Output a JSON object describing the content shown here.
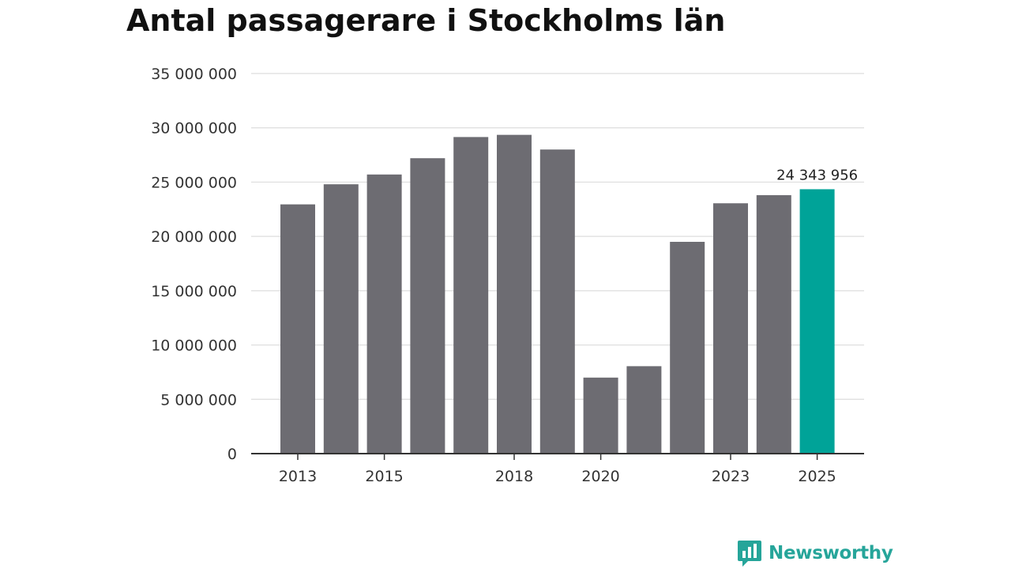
{
  "chart_data": {
    "type": "bar",
    "title": "Antal passagerare i Stockholms län",
    "xlabel": "",
    "ylabel": "",
    "ylim": [
      0,
      35000000
    ],
    "yticks": [
      0,
      5000000,
      10000000,
      15000000,
      20000000,
      25000000,
      30000000,
      35000000
    ],
    "ytick_labels": [
      "0",
      "5 000 000",
      "10 000 000",
      "15 000 000",
      "20 000 000",
      "25 000 000",
      "30 000 000",
      "35 000 000"
    ],
    "categories": [
      "2013",
      "2014",
      "2015",
      "2016",
      "2017",
      "2018",
      "2019",
      "2020",
      "2021",
      "2022",
      "2023",
      "2024",
      "2025"
    ],
    "xtick_labels": [
      "2013",
      "2015",
      "2018",
      "2020",
      "2023",
      "2025"
    ],
    "values": [
      22950000,
      24800000,
      25700000,
      27200000,
      29150000,
      29350000,
      28000000,
      7000000,
      8050000,
      19500000,
      23050000,
      23800000,
      24343956
    ],
    "highlight_index": 12,
    "highlight_label": "24 343 956",
    "colors": {
      "bar": "#6d6c72",
      "highlight": "#00a398",
      "grid": "#dddddd",
      "axis": "#333333",
      "text": "#333333"
    },
    "grid": true
  },
  "brand": {
    "name": "Newsworthy",
    "icon": "newsworthy-logo-icon"
  }
}
